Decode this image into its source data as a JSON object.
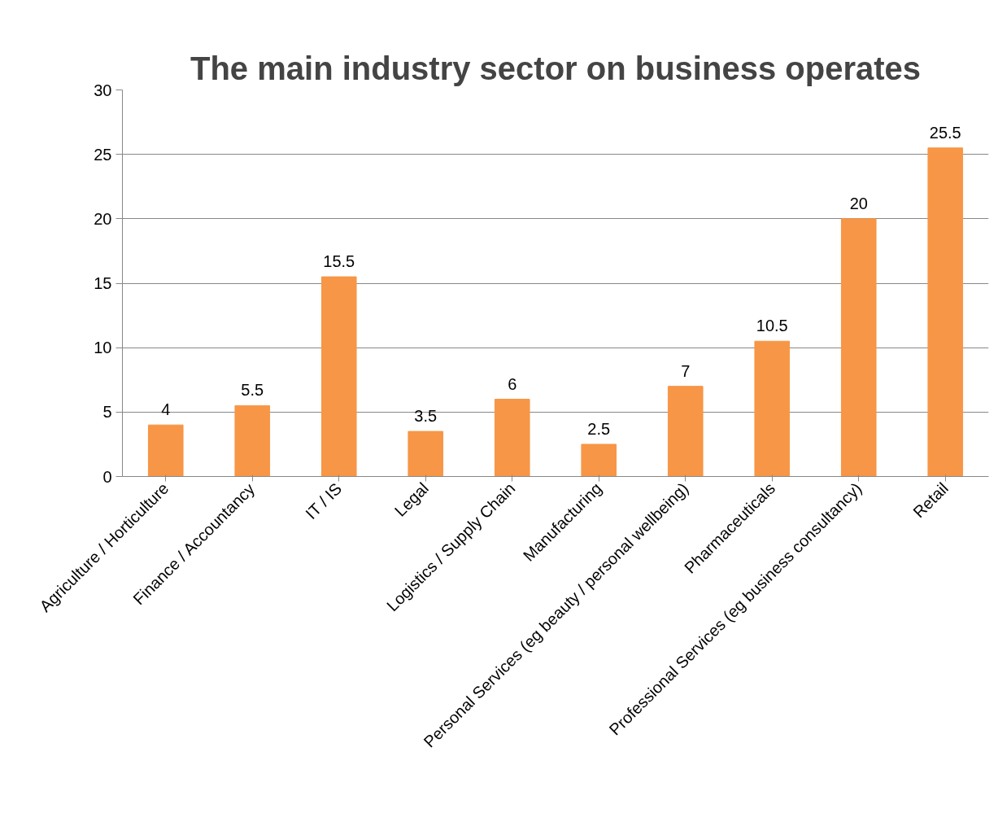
{
  "chart_data": {
    "type": "bar",
    "title": "The main industry sector on business operates",
    "categories": [
      "Agriculture / Horticulture",
      "Finance / Accountancy",
      "IT / IS",
      "Legal",
      "Logistics / Supply Chain",
      "Manufacturing",
      "Personal Services (eg beauty / personal wellbeing)",
      "Pharmaceuticals",
      "Professional Services (eg business consultancy)",
      "Retail"
    ],
    "values": [
      4,
      5.5,
      15.5,
      3.5,
      6,
      2.5,
      7,
      10.5,
      20,
      25.5
    ],
    "color": "#f79646",
    "ylim": [
      0,
      30
    ],
    "yticks": [
      0,
      5,
      10,
      15,
      20,
      25,
      30
    ],
    "grid": "y",
    "data_labels": true
  }
}
